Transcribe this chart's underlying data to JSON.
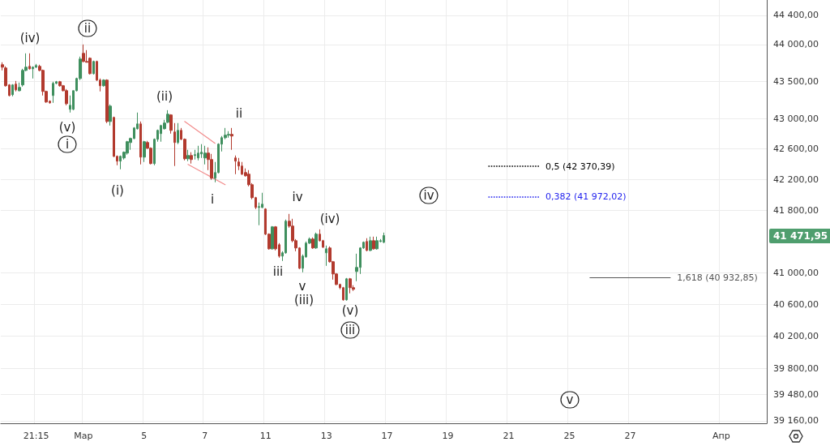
{
  "chart_data": {
    "type": "candlestick",
    "log": "y",
    "grid": true,
    "categories": [
      null,
      null,
      null,
      null,
      null,
      null,
      null,
      null,
      null,
      null,
      "21:15",
      null,
      null,
      null,
      null,
      null,
      null,
      null,
      null,
      null,
      null,
      null,
      null,
      null,
      "Мар",
      null,
      null,
      null,
      null,
      null,
      null,
      null,
      null,
      null,
      null,
      null,
      null,
      null,
      null,
      null,
      null,
      null,
      "5",
      null,
      null,
      null,
      null,
      null,
      null,
      null,
      null,
      null,
      null,
      null,
      null,
      null,
      null,
      null,
      null,
      null,
      "7",
      null,
      null,
      null,
      null,
      null,
      null,
      null,
      null,
      null,
      null,
      null,
      null,
      null,
      null,
      null,
      null,
      null,
      "11",
      null,
      null,
      null,
      null,
      null,
      null,
      null,
      null,
      null,
      null,
      null,
      null,
      null,
      null,
      null,
      null,
      null,
      "13",
      null,
      null,
      null,
      null,
      null,
      null,
      null,
      null,
      null,
      null,
      null,
      null,
      null,
      null,
      null,
      null,
      null,
      "17",
      null,
      null,
      null,
      null,
      null,
      null,
      null,
      null,
      null,
      null,
      null,
      null,
      null,
      null,
      null,
      null,
      null,
      "19",
      null,
      null,
      null,
      null,
      null,
      null,
      null,
      null,
      null,
      null,
      null,
      null,
      null,
      null,
      null,
      null,
      null,
      "21",
      null,
      null,
      null,
      null,
      null,
      null,
      null,
      null,
      null,
      null,
      null,
      null,
      null,
      null,
      null,
      null,
      null,
      "25",
      null,
      null,
      null,
      null,
      null,
      null,
      null,
      null,
      null,
      null,
      null,
      null,
      null,
      null,
      null,
      null,
      null,
      "27",
      null,
      null,
      null,
      null,
      null,
      null,
      null,
      null,
      null,
      null,
      null,
      null,
      null,
      null,
      null,
      null,
      null,
      null,
      null,
      null,
      null,
      null,
      null,
      null,
      null,
      null,
      "Апр",
      null,
      null,
      null,
      null,
      null,
      null,
      null,
      null,
      null,
      null,
      null,
      null,
      null
    ],
    "ylim": [
      39130,
      44610
    ],
    "yticks": [
      {
        "value": 39160,
        "label": "39 160,00"
      },
      {
        "value": 39480,
        "label": "39 480,00"
      },
      {
        "value": 39800,
        "label": "39 800,00"
      },
      {
        "value": 40200,
        "label": "40 200,00"
      },
      {
        "value": 40600,
        "label": "40 600,00"
      },
      {
        "value": 41000,
        "label": "41 000,00"
      },
      {
        "value": 41800,
        "label": "41 800,00"
      },
      {
        "value": 42200,
        "label": "42 200,00"
      },
      {
        "value": 42600,
        "label": "42 600,00"
      },
      {
        "value": 43000,
        "label": "43 000,00"
      },
      {
        "value": 43500,
        "label": "43 500,00"
      },
      {
        "value": 44000,
        "label": "44 000,00"
      },
      {
        "value": 44400,
        "label": "44 400,00"
      }
    ],
    "series": [
      {
        "ohlc": [
          [
            43725,
            43758,
            43648,
            43692
          ],
          [
            43681,
            43703,
            43430,
            43441
          ],
          [
            43452,
            43463,
            43299,
            43310
          ],
          [
            43321,
            43463,
            43299,
            43452
          ],
          [
            43463,
            43506,
            43365,
            43386
          ],
          [
            43375,
            43484,
            43365,
            43419
          ],
          [
            43452,
            43670,
            43430,
            43648
          ],
          [
            43648,
            43879,
            43637,
            43692
          ],
          [
            43703,
            43879,
            43659,
            43670
          ],
          [
            43670,
            43703,
            43539,
            43692
          ],
          [
            43692,
            43736,
            43681,
            43714
          ],
          [
            43703,
            43725,
            43637,
            43648
          ],
          [
            43648,
            43659,
            43310,
            43365
          ],
          [
            43365,
            43375,
            43212,
            43223
          ],
          [
            43234,
            43245,
            43201,
            43212
          ],
          [
            43310,
            43495,
            43212,
            43473
          ],
          [
            43473,
            43506,
            43463,
            43495
          ],
          [
            43495,
            43506,
            43430,
            43441
          ],
          [
            43441,
            43452,
            43365,
            43375
          ],
          [
            43375,
            43397,
            43179,
            43201
          ],
          [
            43125,
            43310,
            43082,
            43179
          ],
          [
            43125,
            43375,
            43114,
            43375
          ],
          [
            43375,
            43550,
            43365,
            43539
          ],
          [
            43539,
            43835,
            43517,
            43802
          ],
          [
            43879,
            44000,
            43758,
            43769
          ],
          [
            43769,
            43923,
            43758,
            43758
          ],
          [
            43813,
            43824,
            43593,
            43604
          ],
          [
            43604,
            43780,
            43593,
            43769
          ],
          [
            43769,
            43780,
            43506,
            43517
          ],
          [
            43517,
            43539,
            43365,
            43441
          ],
          [
            43441,
            43528,
            43430,
            43517
          ],
          [
            43517,
            43528,
            42942,
            42963
          ],
          [
            42963,
            43190,
            42909,
            43168
          ],
          [
            43017,
            43028,
            42492,
            42502
          ],
          [
            42502,
            42513,
            42385,
            42439
          ],
          [
            42439,
            42513,
            42332,
            42502
          ],
          [
            42481,
            42566,
            42460,
            42556
          ],
          [
            42545,
            42706,
            42524,
            42695
          ],
          [
            42684,
            42749,
            42588,
            42738
          ],
          [
            42738,
            42888,
            42728,
            42877
          ],
          [
            42867,
            43082,
            42856,
            42931
          ],
          [
            42931,
            42963,
            42396,
            42492
          ],
          [
            42492,
            42706,
            42428,
            42695
          ],
          [
            42684,
            42706,
            42598,
            42609
          ],
          [
            42609,
            42620,
            42396,
            42407
          ],
          [
            42407,
            42738,
            42385,
            42727
          ],
          [
            42727,
            42856,
            42695,
            42845
          ],
          [
            42802,
            42920,
            42695,
            42909
          ],
          [
            42867,
            42985,
            42856,
            42942
          ],
          [
            42952,
            43114,
            42942,
            43060
          ],
          [
            43050,
            43060,
            42802,
            42845
          ],
          [
            42824,
            42942,
            42375,
            42684
          ],
          [
            42684,
            42942,
            42663,
            42845
          ],
          [
            42845,
            42877,
            42717,
            42727
          ],
          [
            42727,
            42738,
            42449,
            42470
          ],
          [
            42470,
            42588,
            42439,
            42513
          ],
          [
            42513,
            42556,
            42407,
            42460
          ],
          [
            42513,
            42588,
            42460,
            42524
          ],
          [
            42481,
            42641,
            42449,
            42545
          ],
          [
            42534,
            42663,
            42481,
            42556
          ],
          [
            42481,
            42641,
            42396,
            42545
          ],
          [
            42545,
            42620,
            42321,
            42460
          ],
          [
            42460,
            42534,
            42194,
            42215
          ],
          [
            42215,
            42428,
            42162,
            42289
          ],
          [
            42289,
            42674,
            42279,
            42663
          ],
          [
            42663,
            42770,
            42566,
            42748
          ],
          [
            42748,
            42877,
            42727,
            42781
          ],
          [
            42781,
            42834,
            42748,
            42792
          ],
          [
            42792,
            42877,
            42588,
            42770
          ],
          [
            42481,
            42513,
            42268,
            42439
          ],
          [
            42428,
            42481,
            42321,
            42375
          ],
          [
            42375,
            42428,
            42257,
            42268
          ],
          [
            42289,
            42343,
            42236,
            42247
          ],
          [
            42268,
            42321,
            42109,
            42130
          ],
          [
            42130,
            42151,
            41941,
            41962
          ],
          [
            41962,
            41972,
            41814,
            41835
          ],
          [
            41835,
            41898,
            41605,
            41846
          ],
          [
            41835,
            42025,
            41825,
            41877
          ],
          [
            41814,
            41825,
            41479,
            41490
          ],
          [
            41490,
            41500,
            41292,
            41302
          ],
          [
            41302,
            41594,
            41292,
            41584
          ],
          [
            41584,
            41594,
            41282,
            41302
          ],
          [
            41354,
            41375,
            41189,
            41209
          ],
          [
            41209,
            41271,
            41147,
            41251
          ],
          [
            41251,
            41678,
            41240,
            41657
          ],
          [
            41657,
            41751,
            41573,
            41594
          ],
          [
            41594,
            41688,
            41386,
            41406
          ],
          [
            41406,
            41427,
            41271,
            41313
          ],
          [
            41313,
            41323,
            41044,
            41054
          ],
          [
            41054,
            41230,
            41003,
            41209
          ],
          [
            41199,
            41396,
            41189,
            41375
          ],
          [
            41375,
            41448,
            41365,
            41427
          ],
          [
            41427,
            41448,
            41302,
            41313
          ],
          [
            41313,
            41510,
            41302,
            41490
          ],
          [
            41490,
            41552,
            41396,
            41406
          ],
          [
            41406,
            41417,
            41313,
            41323
          ],
          [
            41251,
            41344,
            41085,
            41302
          ],
          [
            41313,
            41333,
            41127,
            41137
          ],
          [
            41137,
            41147,
            40910,
            40982
          ],
          [
            40982,
            40993,
            40839,
            40849
          ],
          [
            40849,
            40859,
            40788,
            40808
          ],
          [
            40808,
            40818,
            40645,
            40655
          ],
          [
            40655,
            40931,
            40645,
            40920
          ],
          [
            40920,
            40931,
            40737,
            40808
          ],
          [
            40808,
            40839,
            40767,
            40788
          ],
          [
            41013,
            41240,
            40890,
            41065
          ],
          [
            41065,
            41323,
            40982,
            41313
          ],
          [
            41313,
            41396,
            41302,
            41386
          ],
          [
            41396,
            41438,
            41271,
            41282
          ],
          [
            41282,
            41458,
            41271,
            41406
          ],
          [
            41406,
            41458,
            41292,
            41302
          ],
          [
            41302,
            41458,
            41292,
            41406
          ],
          [
            41396,
            41427,
            41386,
            41406
          ],
          [
            41386,
            41510,
            41375,
            41471.95
          ],
          null,
          null,
          null,
          null,
          null,
          null,
          null,
          null,
          null,
          null,
          null,
          null,
          null,
          null,
          null,
          null,
          null,
          null,
          null,
          null,
          null,
          null,
          null,
          null,
          null,
          null,
          null,
          null,
          null,
          null,
          null,
          null,
          null,
          null,
          null,
          null,
          null,
          null,
          null,
          null,
          null,
          null,
          null,
          null,
          null,
          null,
          null,
          null,
          null,
          null,
          null,
          null,
          null,
          null,
          null,
          null,
          null,
          null,
          null,
          null,
          null,
          null,
          null,
          null,
          null,
          null,
          null,
          null,
          null,
          null,
          null,
          null,
          null,
          null,
          null,
          null,
          null,
          null,
          null,
          null,
          null,
          null,
          null,
          null,
          null,
          null,
          null,
          null,
          null,
          null,
          null,
          null,
          null,
          null,
          null,
          null,
          null,
          null,
          null,
          null,
          null,
          null,
          null,
          null,
          null,
          null,
          null,
          null,
          null,
          null,
          null,
          null,
          null
        ],
        "colors": [
          "#b23a2e",
          "#b23a2e",
          "#b23a2e",
          "#3f8f5e",
          "#b23a2e",
          "#3f8f5e",
          "#3f8f5e",
          "#3f8f5e",
          "#b23a2e",
          "#3f8f5e",
          "#3f8f5e",
          "#b23a2e",
          "#b23a2e",
          "#b23a2e",
          "#b23a2e",
          "#3f8f5e",
          "#3f8f5e",
          "#b23a2e",
          "#b23a2e",
          "#b23a2e",
          "#3f8f5e",
          "#3f8f5e",
          "#3f8f5e",
          "#3f8f5e",
          "#b23a2e",
          "#b23a2e",
          "#b23a2e",
          "#3f8f5e",
          "#b23a2e",
          "#b23a2e",
          "#3f8f5e",
          "#b23a2e",
          "#3f8f5e",
          "#b23a2e",
          "#b23a2e",
          "#3f8f5e",
          "#3f8f5e",
          "#3f8f5e",
          "#3f8f5e",
          "#3f8f5e",
          "#3f8f5e",
          "#b23a2e",
          "#3f8f5e",
          "#b23a2e",
          "#b23a2e",
          "#3f8f5e",
          "#3f8f5e",
          "#3f8f5e",
          "#3f8f5e",
          "#3f8f5e",
          "#b23a2e",
          "#b23a2e",
          "#3f8f5e",
          "#b23a2e",
          "#b23a2e",
          "#3f8f5e",
          "#b23a2e",
          "#3f8f5e",
          "#3f8f5e",
          "#3f8f5e",
          "#3f8f5e",
          "#b23a2e",
          "#b23a2e",
          "#3f8f5e",
          "#3f8f5e",
          "#3f8f5e",
          "#3f8f5e",
          "#3f8f5e",
          "#b23a2e",
          "#b23a2e",
          "#b23a2e",
          "#b23a2e",
          "#b23a2e",
          "#b23a2e",
          "#b23a2e",
          "#b23a2e",
          "#3f8f5e",
          "#3f8f5e",
          "#b23a2e",
          "#b23a2e",
          "#3f8f5e",
          "#b23a2e",
          "#b23a2e",
          "#3f8f5e",
          "#3f8f5e",
          "#b23a2e",
          "#b23a2e",
          "#b23a2e",
          "#b23a2e",
          "#3f8f5e",
          "#3f8f5e",
          "#3f8f5e",
          "#b23a2e",
          "#3f8f5e",
          "#b23a2e",
          "#b23a2e",
          "#3f8f5e",
          "#b23a2e",
          "#b23a2e",
          "#b23a2e",
          "#b23a2e",
          "#b23a2e",
          "#3f8f5e",
          "#b23a2e",
          "#b23a2e",
          "#3f8f5e",
          "#3f8f5e",
          "#3f8f5e",
          "#b23a2e",
          "#3f8f5e",
          "#b23a2e",
          "#3f8f5e",
          "#3f8f5e",
          "#3f8f5e",
          null,
          null,
          null,
          null,
          null,
          null,
          null,
          null,
          null,
          null,
          null,
          null,
          null,
          null,
          null,
          null,
          null,
          null,
          null,
          null,
          null,
          null,
          null,
          null,
          null,
          null,
          null,
          null,
          null,
          null,
          null,
          null,
          null,
          null,
          null,
          null,
          null,
          null,
          null,
          null,
          null,
          null,
          null,
          null,
          null,
          null,
          null,
          null,
          null,
          null,
          null,
          null,
          null,
          null,
          null,
          null,
          null,
          null,
          null,
          null,
          null,
          null,
          null,
          null,
          null,
          null,
          null,
          null,
          null,
          null,
          null,
          null,
          null,
          null,
          null,
          null,
          null,
          null,
          null,
          null,
          null,
          null,
          null,
          null,
          null,
          null,
          null,
          null,
          null,
          null,
          null,
          null,
          null,
          null,
          null,
          null,
          null,
          null,
          null,
          null,
          null,
          null,
          null,
          null,
          null,
          null,
          null,
          null,
          null,
          null,
          null,
          null,
          null
        ]
      },
      {
        "type": "line",
        "color": "#f28b8b",
        "values": [
          null,
          null,
          null,
          null,
          null,
          null,
          null,
          null,
          null,
          null,
          null,
          null,
          null,
          null,
          null,
          null,
          null,
          null,
          null,
          null,
          null,
          null,
          null,
          null,
          null,
          null,
          null,
          null,
          null,
          null,
          null,
          null,
          null,
          null,
          null,
          null,
          null,
          null,
          null,
          null,
          null,
          null,
          null,
          null,
          null,
          null,
          null,
          null,
          null,
          null,
          null,
          null,
          null,
          null,
          42963,
          null,
          null,
          null,
          null,
          null,
          null,
          null,
          null,
          42674,
          null,
          null,
          null,
          null,
          null,
          null,
          null,
          null,
          null,
          null,
          null,
          null,
          null,
          null,
          null,
          null,
          null,
          null,
          null,
          null,
          null,
          null,
          null,
          null,
          null,
          null,
          null,
          null,
          null,
          null,
          null,
          null,
          null,
          null,
          null,
          null,
          null,
          null,
          null,
          null,
          null,
          null,
          null,
          null,
          null,
          null,
          null,
          null,
          null,
          null,
          null,
          null,
          null,
          null,
          null,
          null,
          null,
          null,
          null,
          null,
          null,
          null,
          null,
          null,
          null,
          null,
          null,
          null,
          null,
          null,
          null,
          null,
          null,
          null,
          null,
          null,
          null,
          null,
          null,
          null,
          null,
          null,
          null,
          null,
          null,
          null,
          null,
          null,
          null,
          null,
          null,
          null,
          null,
          null,
          null,
          null,
          null,
          null,
          null,
          null,
          null,
          null,
          null,
          null,
          null,
          null,
          null,
          null,
          null,
          null,
          null,
          null,
          null,
          null,
          null,
          null,
          null,
          null,
          null,
          null,
          null,
          null,
          null,
          null,
          null,
          null,
          null,
          null,
          null,
          null,
          null,
          null,
          null,
          null,
          null,
          null,
          null,
          null,
          null,
          null,
          null,
          null,
          null,
          null,
          null,
          null,
          null,
          null,
          null,
          null,
          null,
          null,
          null,
          null,
          null,
          null,
          null,
          null,
          null,
          null,
          null,
          null,
          null
        ]
      },
      {
        "type": "line",
        "color": "#f28b8b",
        "values": [
          null,
          null,
          null,
          null,
          null,
          null,
          null,
          null,
          null,
          null,
          null,
          null,
          null,
          null,
          null,
          null,
          null,
          null,
          null,
          null,
          null,
          null,
          null,
          null,
          null,
          null,
          null,
          null,
          null,
          null,
          null,
          null,
          null,
          null,
          null,
          null,
          null,
          null,
          null,
          null,
          null,
          null,
          null,
          null,
          null,
          null,
          null,
          null,
          null,
          null,
          null,
          null,
          null,
          null,
          null,
          42396,
          null,
          null,
          null,
          null,
          null,
          null,
          null,
          null,
          null,
          null,
          42130,
          null,
          null,
          null,
          null,
          null,
          null,
          null,
          null,
          null,
          null,
          null,
          null,
          null,
          null,
          null,
          null,
          null,
          null,
          null,
          null,
          null,
          null,
          null,
          null,
          null,
          null,
          null,
          null,
          null,
          null,
          null,
          null,
          null,
          null,
          null,
          null,
          null,
          null,
          null,
          null,
          null,
          null,
          null,
          null,
          null,
          null,
          null,
          null,
          null,
          null,
          null,
          null,
          null,
          null,
          null,
          null,
          null,
          null,
          null,
          null,
          null,
          null,
          null,
          null,
          null,
          null,
          null,
          null,
          null,
          null,
          null,
          null,
          null,
          null,
          null,
          null,
          null,
          null,
          null,
          null,
          null,
          null,
          null,
          null,
          null,
          null,
          null,
          null,
          null,
          null,
          null,
          null,
          null,
          null,
          null,
          null,
          null,
          null,
          null,
          null,
          null,
          null,
          null,
          null,
          null,
          null,
          null,
          null,
          null,
          null,
          null,
          null,
          null,
          null,
          null,
          null,
          null,
          null,
          null,
          null,
          null,
          null,
          null,
          null,
          null,
          null,
          null,
          null,
          null,
          null,
          null,
          null,
          null,
          null,
          null,
          null,
          null,
          null,
          null,
          null,
          null,
          null,
          null,
          null,
          null,
          null,
          null,
          null,
          null,
          null,
          null,
          null,
          null,
          null,
          null,
          null,
          null,
          null,
          null,
          null
        ]
      }
    ],
    "ref_lines": [
      {
        "axis": "y",
        "value": 42370.39,
        "label": "0,5 (42 370,39)",
        "color": "#000000",
        "line_style": "dotted"
      },
      {
        "axis": "y",
        "value": 41972.02,
        "label": "0,382 (41 972,02)",
        "color": "#2222ee",
        "line_style": "dotted"
      },
      {
        "axis": "y",
        "value": 40932.85,
        "label": "1,618 (40 932,85)",
        "color": "#555555",
        "line_style": "solid"
      }
    ],
    "annotations": [
      "(iv)",
      "ii",
      "(v)",
      "i",
      "(i)",
      "(ii)",
      "i",
      "ii",
      "iv",
      "(iv)",
      "iii",
      "v",
      "(iii)",
      "(v)",
      "iii",
      "iv",
      "v",
      "41 471,95"
    ]
  }
}
